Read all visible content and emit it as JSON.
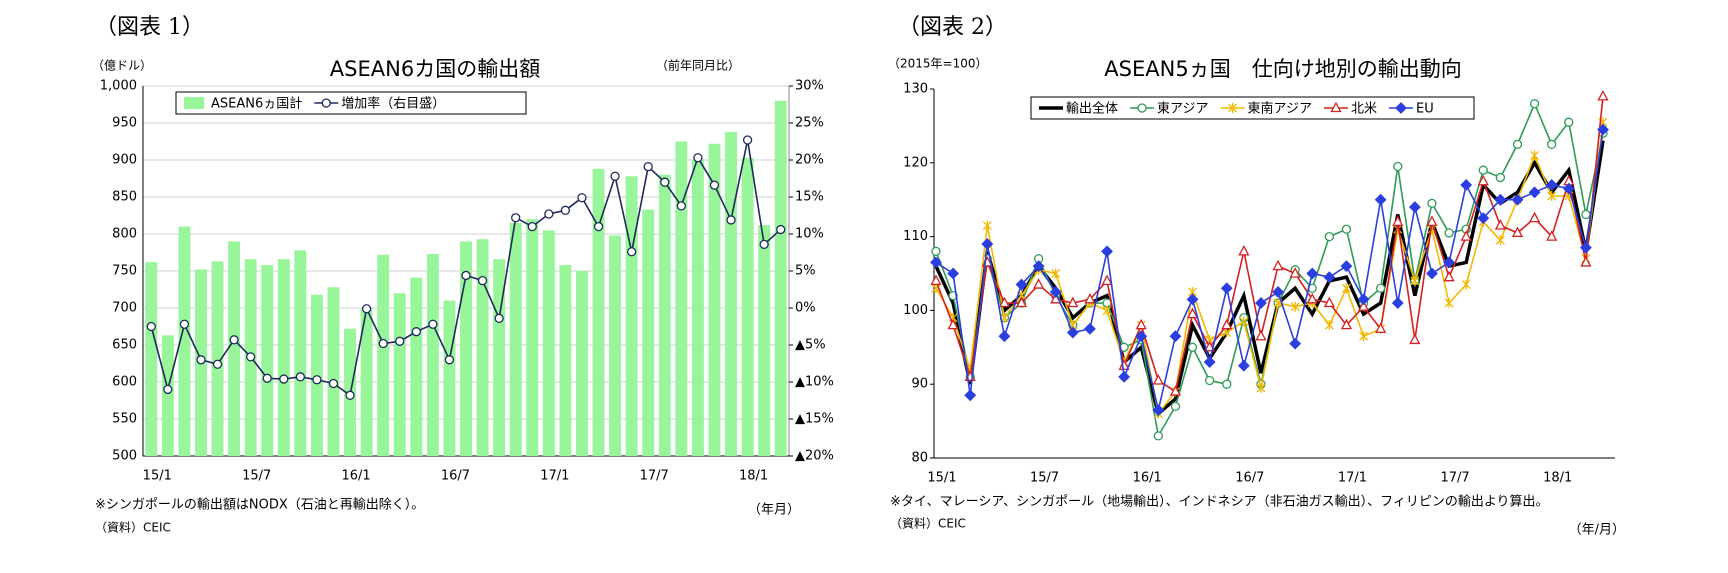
{
  "chart_data": [
    {
      "type": "bar",
      "figure_label": "（図表 1）",
      "title": "ASEAN6カ国の輸出額",
      "y_label": "（億ドル）",
      "y2_label": "（前年同月比）",
      "x_label": "（年月）",
      "note": "※シンガポールの輸出額はNODX（石油と再輸出除く）。",
      "source": "（資料）CEIC",
      "categories": [
        "15/1",
        null,
        null,
        null,
        null,
        null,
        "15/7",
        null,
        null,
        null,
        null,
        null,
        "16/1",
        null,
        null,
        null,
        null,
        null,
        "16/7",
        null,
        null,
        null,
        null,
        null,
        "17/1",
        null,
        null,
        null,
        null,
        null,
        "17/7",
        null,
        null,
        null,
        null,
        null,
        "18/1",
        null,
        null
      ],
      "series": [
        {
          "name": "ASEAN6ヵ国計",
          "type": "bar",
          "color": "#99f599",
          "values": [
            762,
            663,
            810,
            752,
            763,
            790,
            766,
            758,
            766,
            778,
            718,
            728,
            672,
            700,
            772,
            720,
            741,
            773,
            710,
            790,
            793,
            766,
            815,
            820,
            805,
            758,
            750,
            888,
            798,
            878,
            833,
            880,
            925,
            900,
            922,
            938,
            903,
            812,
            980
          ]
        },
        {
          "name": "増加率（右目盛）",
          "type": "line",
          "axis": "y2",
          "color": "#1f2a5c",
          "marker": "circle",
          "values": [
            -2.5,
            -11,
            -2.2,
            -7,
            -7.6,
            -4.3,
            -6.6,
            -9.5,
            -9.6,
            -9.3,
            -9.7,
            -10.2,
            -11.8,
            -0.1,
            -4.8,
            -4.5,
            -3.2,
            -2.2,
            -7,
            4.4,
            3.7,
            -1.4,
            12.2,
            11,
            12.7,
            13.2,
            14.9,
            11,
            17.8,
            7.6,
            19.1,
            17,
            13.8,
            20.3,
            16.6,
            11.9,
            22.7,
            8.6,
            10.6
          ]
        }
      ],
      "ylim": [
        500,
        1000
      ],
      "yticks": [
        500,
        550,
        600,
        650,
        700,
        750,
        800,
        850,
        900,
        950,
        {
          "value": 1000,
          "label": "1,000"
        }
      ],
      "y2lim": [
        -20,
        30
      ],
      "y2ticks": [
        {
          "value": -20,
          "label": "▲20%"
        },
        {
          "value": -15,
          "label": "▲15%"
        },
        {
          "value": -10,
          "label": "▲10%"
        },
        {
          "value": -5,
          "label": "▲5%"
        },
        {
          "value": 0,
          "label": "0%"
        },
        {
          "value": 5,
          "label": "5%"
        },
        {
          "value": 10,
          "label": "10%"
        },
        {
          "value": 15,
          "label": "15%"
        },
        {
          "value": 20,
          "label": "20%"
        },
        {
          "value": 25,
          "label": "25%"
        },
        {
          "value": 30,
          "label": "30%"
        }
      ],
      "grid": true
    },
    {
      "type": "line",
      "figure_label": "（図表 2）",
      "title": "ASEAN5ヵ国　仕向け地別の輸出動向",
      "y_label": "（2015年=100）",
      "x_label": "（年/月）",
      "note": "※タイ、マレーシア、シンガポール（地場輸出）、インドネシア（非石油ガス輸出）、フィリピンの輸出より算出。",
      "source": "（資料）CEIC",
      "categories": [
        "15/1",
        null,
        null,
        null,
        null,
        null,
        "15/7",
        null,
        null,
        null,
        null,
        null,
        "16/1",
        null,
        null,
        null,
        null,
        null,
        "16/7",
        null,
        null,
        null,
        null,
        null,
        "17/1",
        null,
        null,
        null,
        null,
        null,
        "17/7",
        null,
        null,
        null,
        null,
        null,
        "18/1",
        null,
        null,
        null
      ],
      "series": [
        {
          "name": "輸出全体",
          "color": "#000000",
          "marker": "none",
          "values": [
            106,
            101,
            90,
            108,
            100,
            102,
            106,
            103,
            99,
            101,
            102,
            93,
            95,
            86,
            88,
            98,
            93.5,
            97,
            102,
            91.5,
            101,
            103,
            99.5,
            104,
            104.5,
            99.5,
            101,
            113,
            102,
            112,
            106,
            106.5,
            117,
            114.5,
            116,
            120,
            116,
            119,
            108,
            123
          ]
        },
        {
          "name": "東アジア",
          "color": "#2e9b57",
          "marker": "circle",
          "values": [
            108,
            102,
            91,
            107,
            99,
            101,
            107,
            102,
            98,
            101,
            101,
            95,
            96,
            83,
            87,
            95,
            90.5,
            90,
            99,
            90,
            101,
            105.5,
            103,
            110,
            111,
            101,
            103,
            119.5,
            104,
            114.5,
            110.5,
            111,
            119,
            118,
            122.5,
            128,
            122.5,
            125.5,
            113,
            124
          ]
        },
        {
          "name": "東南アジア",
          "color": "#f5b800",
          "marker": "cross",
          "values": [
            103,
            99,
            92,
            111.5,
            99,
            102,
            105.5,
            105,
            98,
            101,
            100,
            93,
            98,
            86,
            89,
            102.5,
            96,
            97,
            98.5,
            89.5,
            101,
            100.5,
            101,
            98,
            103,
            96.5,
            97.5,
            111,
            104,
            111,
            101,
            103.5,
            112,
            109.5,
            115,
            121,
            115.5,
            115.5,
            107,
            125.5
          ]
        },
        {
          "name": "北米",
          "color": "#d42020",
          "marker": "triangle",
          "values": [
            104,
            98,
            91,
            106.5,
            101,
            101,
            103.5,
            101.5,
            101,
            101.5,
            104,
            92.5,
            98,
            90.5,
            89,
            99.5,
            95,
            98,
            108,
            96.5,
            106,
            105,
            101.5,
            101,
            98,
            100.5,
            97.5,
            112,
            96,
            112,
            104.5,
            110,
            117.5,
            111.5,
            110.5,
            112.5,
            110,
            117.5,
            106.5,
            129
          ]
        },
        {
          "name": "EU",
          "color": "#2b3fe0",
          "marker": "diamond",
          "values": [
            106.5,
            105,
            88.5,
            109,
            96.5,
            103.5,
            106,
            102.5,
            97,
            97.5,
            108,
            91,
            96.5,
            86.5,
            96.5,
            101.5,
            93,
            103,
            92.5,
            101,
            102.5,
            95.5,
            105,
            104.5,
            106,
            101.5,
            115,
            101,
            114,
            105,
            106.5,
            117,
            112.5,
            115,
            115,
            116,
            117,
            116.5,
            108.5,
            124.5
          ]
        }
      ],
      "ylim": [
        80,
        130
      ],
      "yticks": [
        80,
        90,
        100,
        110,
        120,
        130
      ],
      "grid": false
    }
  ]
}
